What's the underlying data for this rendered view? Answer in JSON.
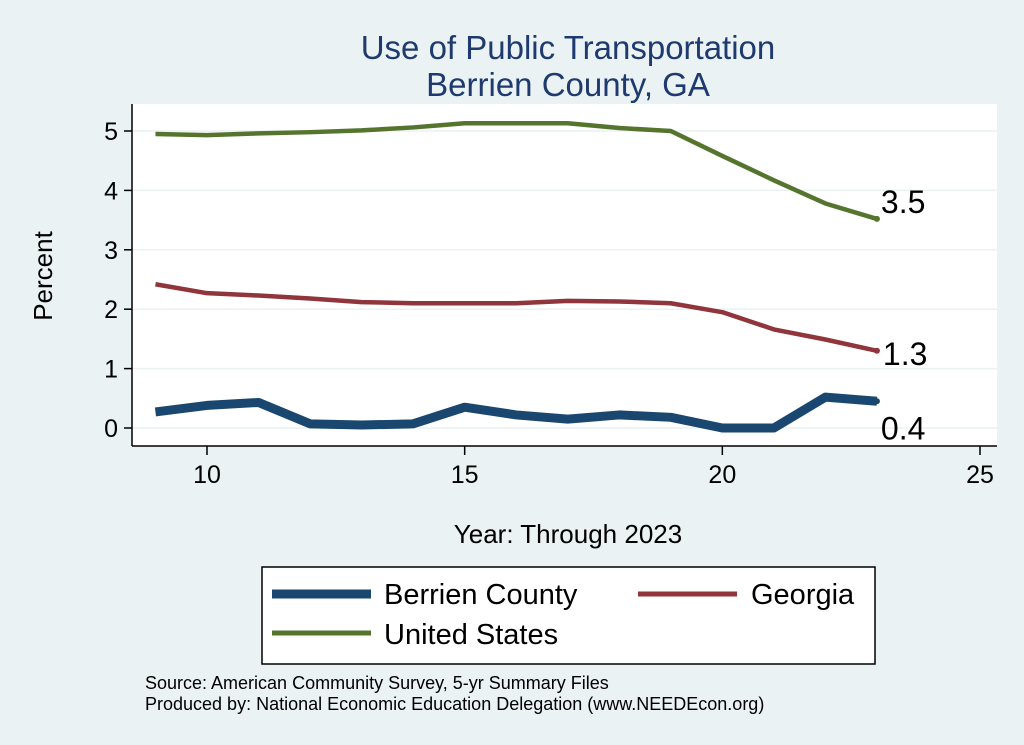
{
  "chart_data": {
    "type": "line",
    "title": "Use of Public Transportation",
    "subtitle": "Berrien County, GA",
    "xlabel": "Year: Through 2023",
    "ylabel": "Percent",
    "xlim": [
      9,
      25
    ],
    "ylim": [
      0,
      5
    ],
    "xticks": [
      10,
      15,
      20,
      25
    ],
    "yticks": [
      0,
      1,
      2,
      3,
      4,
      5
    ],
    "grid": true,
    "legend_position": "bottom",
    "x": [
      9,
      10,
      11,
      12,
      13,
      14,
      15,
      16,
      17,
      18,
      19,
      20,
      21,
      22,
      23
    ],
    "series": [
      {
        "name": "Berrien County",
        "color": "#1a476f",
        "values": [
          0.27,
          0.38,
          0.43,
          0.07,
          0.05,
          0.07,
          0.35,
          0.22,
          0.15,
          0.22,
          0.18,
          0.0,
          0.0,
          0.52,
          0.45
        ],
        "end_label": "0.4"
      },
      {
        "name": "Georgia",
        "color": "#90353b",
        "values": [
          2.42,
          2.27,
          2.23,
          2.18,
          2.12,
          2.1,
          2.1,
          2.1,
          2.14,
          2.13,
          2.1,
          1.95,
          1.66,
          1.49,
          1.3
        ],
        "end_label": "1.3"
      },
      {
        "name": "United States",
        "color": "#55752f",
        "values": [
          4.95,
          4.93,
          4.96,
          4.98,
          5.01,
          5.06,
          5.13,
          5.13,
          5.13,
          5.05,
          5.0,
          4.58,
          4.17,
          3.78,
          3.52
        ],
        "end_label": "3.5"
      }
    ],
    "notes": [
      "Source: American Community Survey, 5-yr Summary Files",
      "Produced by: National Economic Education Delegation (www.NEEDEcon.org)"
    ]
  }
}
